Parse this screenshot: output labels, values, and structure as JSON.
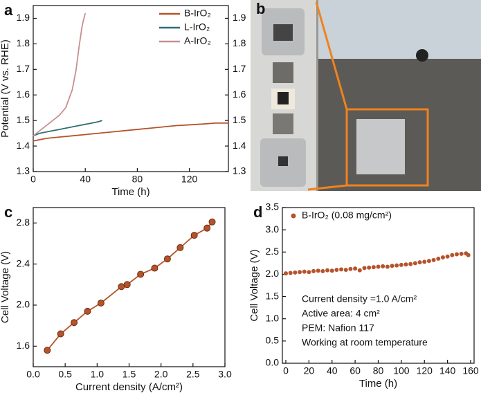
{
  "chart_data": [
    {
      "type": "line",
      "panel": "a",
      "xlabel": "Time (h)",
      "ylabel": "Potential (V vs. RHE)",
      "xlim": [
        0,
        150
      ],
      "xticks": [
        0,
        40,
        80,
        120
      ],
      "ylim": [
        1.3,
        1.95
      ],
      "yticks": [
        1.3,
        1.4,
        1.5,
        1.6,
        1.7,
        1.8,
        1.9
      ],
      "y2lim": [
        1.3,
        1.95
      ],
      "y2ticks": [
        1.3,
        1.4,
        1.5,
        1.6,
        1.7,
        1.8,
        1.9
      ],
      "legend": "upper right",
      "series": [
        {
          "name": "B-IrO₂",
          "color": "#b5532a",
          "x": [
            0,
            10,
            20,
            30,
            40,
            50,
            60,
            70,
            80,
            90,
            100,
            110,
            120,
            130,
            140,
            150
          ],
          "values": [
            1.42,
            1.43,
            1.435,
            1.44,
            1.445,
            1.45,
            1.455,
            1.46,
            1.465,
            1.47,
            1.475,
            1.48,
            1.483,
            1.486,
            1.49,
            1.49
          ]
        },
        {
          "name": "L-IrO₂",
          "color": "#2e6e72",
          "x": [
            0,
            5,
            10,
            15,
            20,
            25,
            30,
            35,
            40,
            45,
            50,
            53
          ],
          "values": [
            1.44,
            1.45,
            1.455,
            1.46,
            1.465,
            1.47,
            1.475,
            1.48,
            1.485,
            1.49,
            1.495,
            1.5
          ]
        },
        {
          "name": "A-IrO₂",
          "color": "#c98f8f",
          "x": [
            0,
            5,
            10,
            15,
            20,
            25,
            30,
            33,
            35,
            37,
            38,
            39,
            40
          ],
          "values": [
            1.44,
            1.46,
            1.48,
            1.5,
            1.52,
            1.55,
            1.62,
            1.7,
            1.78,
            1.85,
            1.88,
            1.9,
            1.92
          ]
        }
      ]
    },
    {
      "type": "image",
      "panel": "b"
    },
    {
      "type": "line",
      "panel": "c",
      "xlabel": "Current density (A/cm²)",
      "ylabel": "Cell Voltage (V)",
      "xlim": [
        0,
        3
      ],
      "xticks": [
        {
          "value": 0,
          "label": "0.0"
        },
        0.5,
        {
          "value": 1,
          "label": "1.0"
        },
        1.5,
        {
          "value": 2,
          "label": "2.0"
        },
        2.5,
        {
          "value": 3,
          "label": "3.0"
        }
      ],
      "ylim": [
        1.4,
        2.95
      ],
      "yticks": [
        1.6,
        {
          "value": 2,
          "label": "2.0"
        },
        2.4,
        2.8
      ],
      "markers": true,
      "series": [
        {
          "color": "#b5532a",
          "x": [
            0.22,
            0.43,
            0.64,
            0.85,
            1.06,
            1.38,
            1.47,
            1.68,
            1.9,
            2.1,
            2.3,
            2.52,
            2.72,
            2.8
          ],
          "values": [
            1.56,
            1.72,
            1.83,
            1.94,
            2.02,
            2.18,
            2.2,
            2.3,
            2.36,
            2.45,
            2.56,
            2.68,
            2.75,
            2.81
          ]
        }
      ]
    },
    {
      "type": "scatter",
      "panel": "d",
      "xlabel": "Time (h)",
      "ylabel": "Cell Voltage (V)",
      "xlim": [
        -3,
        163
      ],
      "xticks": [
        0,
        20,
        40,
        60,
        80,
        100,
        120,
        140,
        160
      ],
      "ylim": [
        0,
        3.5
      ],
      "yticks": [
        {
          "value": 0,
          "label": "0.0"
        },
        0.5,
        {
          "value": 1,
          "label": "1.0"
        },
        1.5,
        {
          "value": 2,
          "label": "2.0"
        },
        2.5,
        {
          "value": 3,
          "label": "3.0"
        },
        3.5
      ],
      "legend": "upper left",
      "annotations": [
        "Current density =1.0 A/cm²",
        "Active area: 4 cm²",
        "PEM: Nafion 117",
        "Working at room temperature"
      ],
      "series": [
        {
          "name": "B-IrO₂ (0.08 mg/cm²)",
          "color": "#b5532a",
          "x": [
            0,
            4,
            8,
            12,
            16,
            20,
            24,
            28,
            32,
            36,
            40,
            44,
            48,
            52,
            56,
            60,
            64,
            68,
            72,
            76,
            80,
            84,
            88,
            92,
            96,
            100,
            104,
            108,
            112,
            116,
            120,
            124,
            128,
            132,
            136,
            140,
            144,
            148,
            152,
            156,
            158
          ],
          "values": [
            2.02,
            2.03,
            2.04,
            2.05,
            2.06,
            2.05,
            2.07,
            2.08,
            2.07,
            2.09,
            2.08,
            2.1,
            2.11,
            2.1,
            2.12,
            2.13,
            2.09,
            2.14,
            2.15,
            2.16,
            2.17,
            2.18,
            2.17,
            2.19,
            2.2,
            2.21,
            2.22,
            2.23,
            2.25,
            2.27,
            2.28,
            2.3,
            2.32,
            2.35,
            2.38,
            2.4,
            2.43,
            2.45,
            2.46,
            2.47,
            2.43
          ]
        }
      ]
    }
  ]
}
